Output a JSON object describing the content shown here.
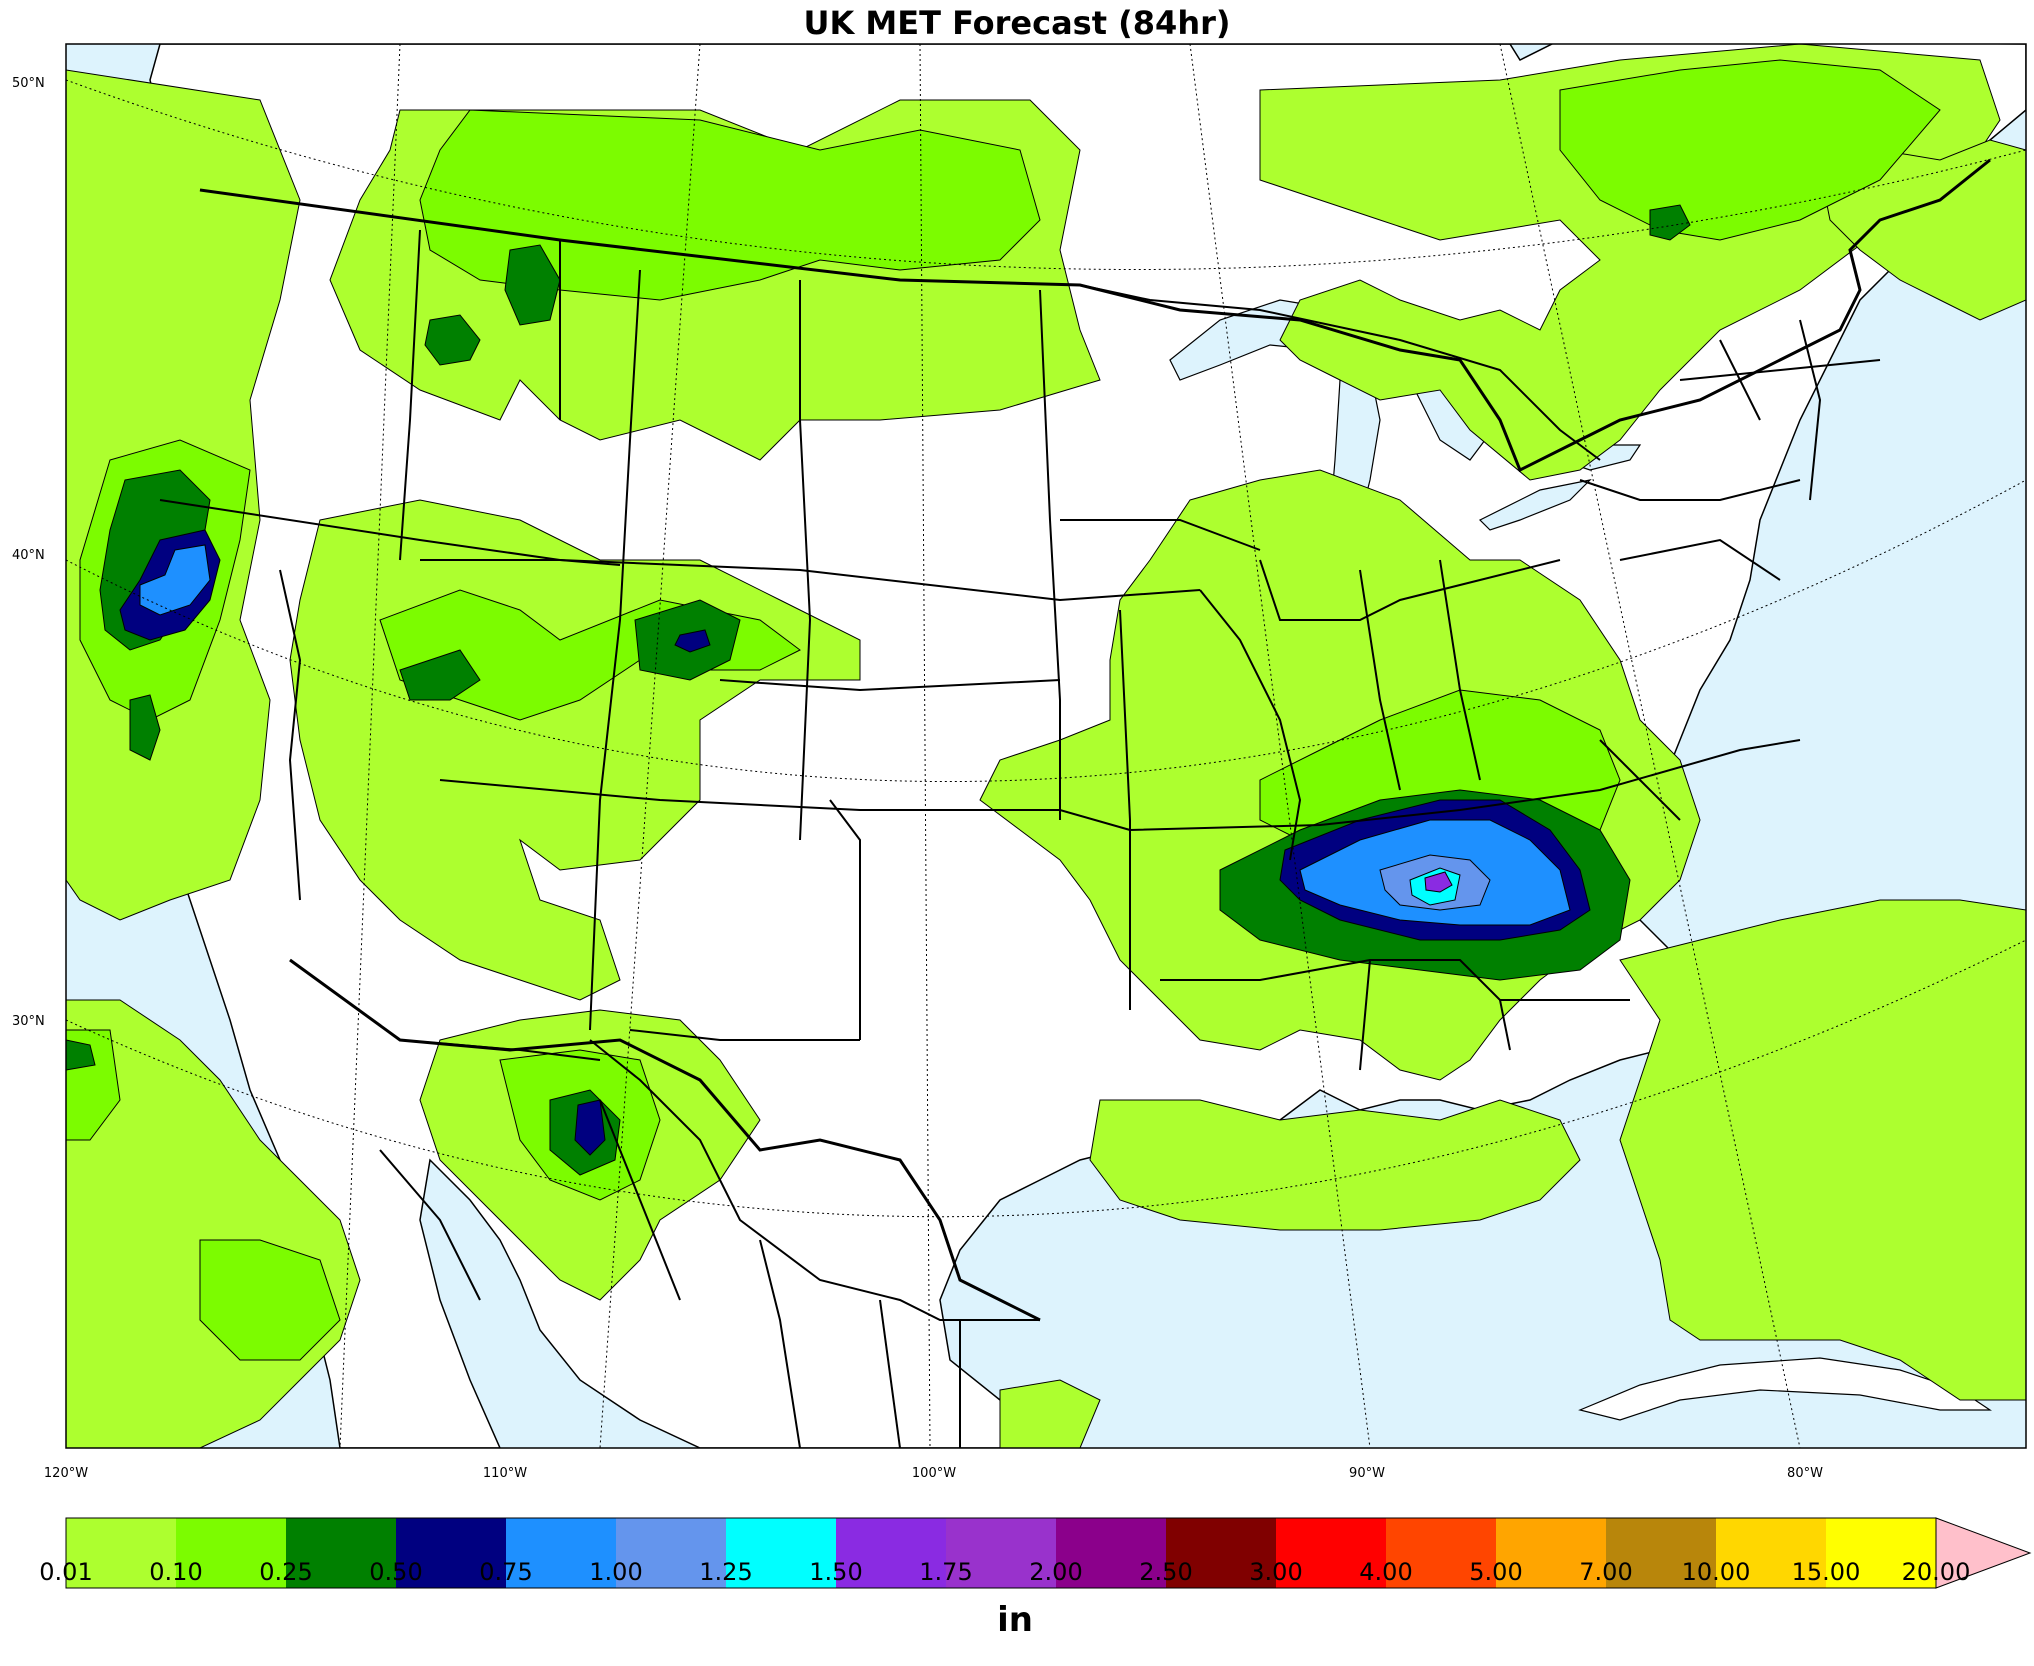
{
  "title": "UK MET Forecast (84hr)",
  "latitude_labels": [
    "50°N",
    "40°N",
    "30°N"
  ],
  "longitude_labels": [
    "120°W",
    "110°W",
    "100°W",
    "90°W",
    "80°W"
  ],
  "colorbar": {
    "unit": "in",
    "ticks": [
      "0.01",
      "0.10",
      "0.25",
      "0.50",
      "0.75",
      "1.00",
      "1.25",
      "1.50",
      "1.75",
      "2.00",
      "2.50",
      "3.00",
      "4.00",
      "5.00",
      "7.00",
      "10.00",
      "15.00",
      "20.00"
    ],
    "colors": [
      "#adff2f",
      "#7cfc00",
      "#008000",
      "#000080",
      "#1e90ff",
      "#6495ed",
      "#00ffff",
      "#8a2be2",
      "#9932cc",
      "#8b008b",
      "#800000",
      "#ff0000",
      "#ff4500",
      "#ffa500",
      "#b8860b",
      "#ffd700",
      "#ffff00"
    ],
    "extend_color": "#ffc0cb"
  },
  "colors": {
    "ocean": "#ddf3fd",
    "land": "#ffffff",
    "border": "#000000"
  }
}
